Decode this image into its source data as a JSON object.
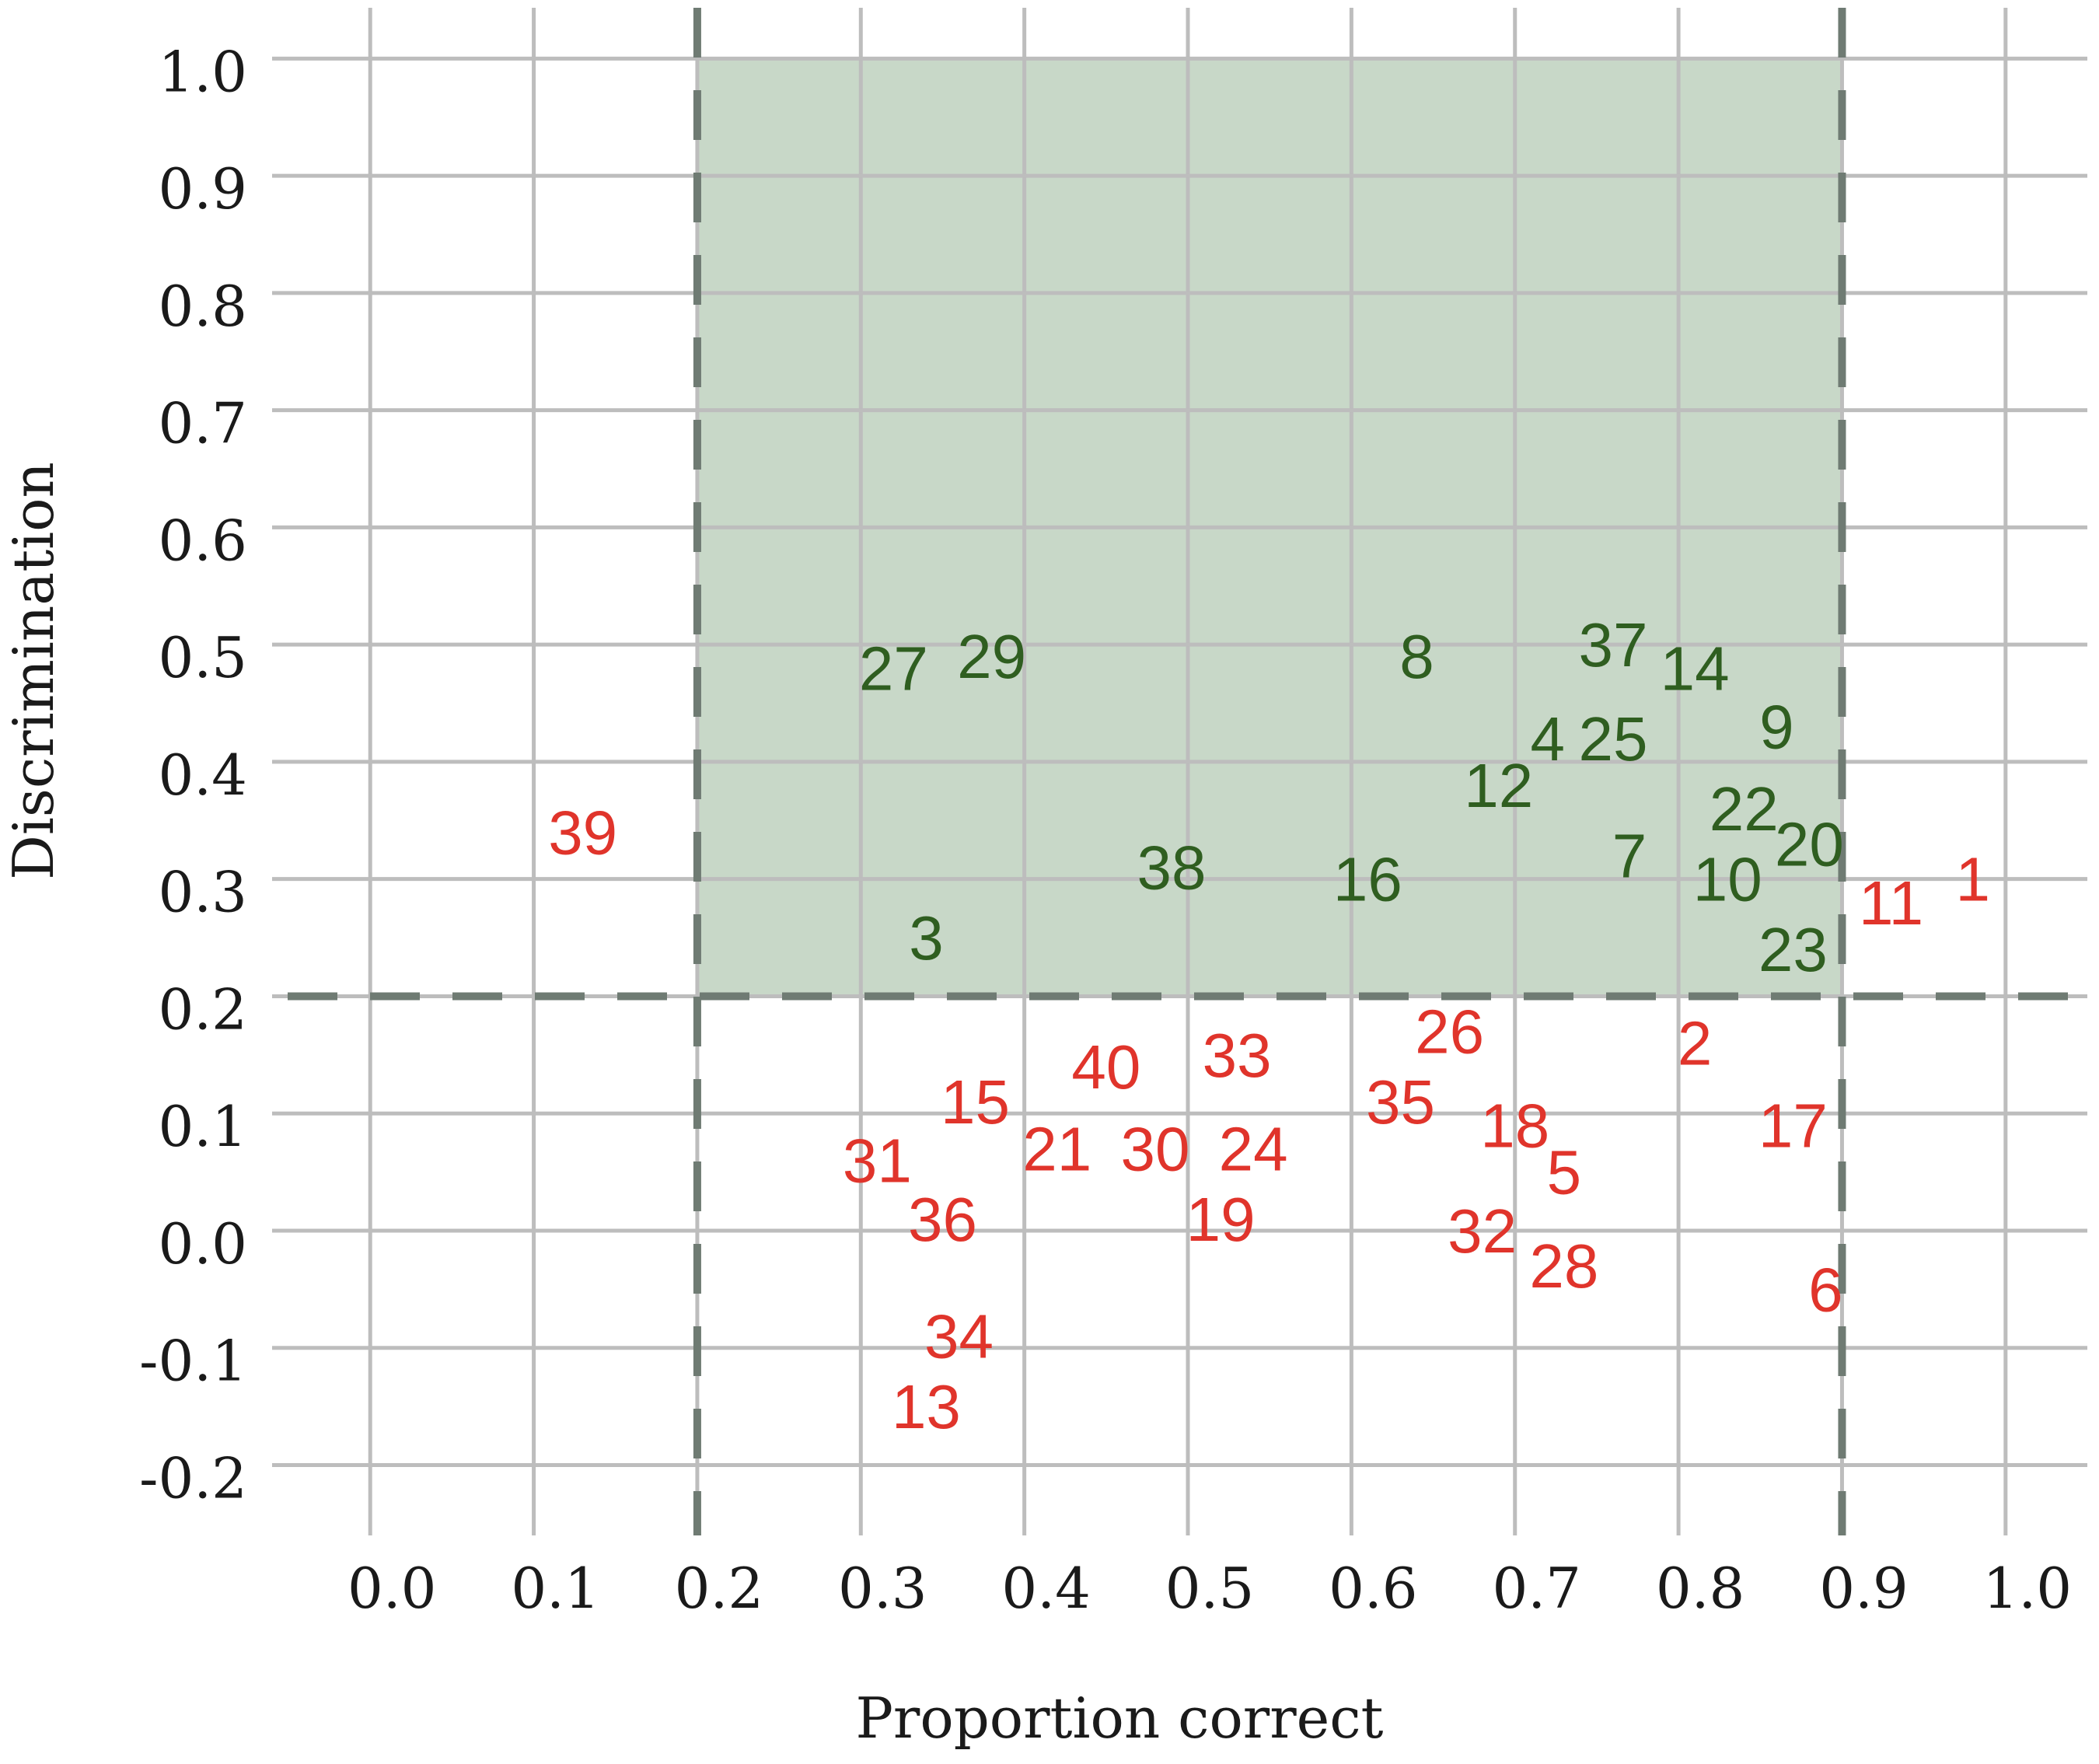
{
  "chart_data": {
    "type": "scatter",
    "xlabel": "Proportion correct",
    "ylabel": "Discrimination",
    "xlim": [
      -0.06,
      1.05
    ],
    "ylim": [
      -0.27,
      1.05
    ],
    "x_ticks": [
      "0.0",
      "0.1",
      "0.2",
      "0.3",
      "0.4",
      "0.5",
      "0.6",
      "0.7",
      "0.8",
      "0.9",
      "1.0"
    ],
    "y_ticks": [
      "1.0",
      "0.9",
      "0.8",
      "0.7",
      "0.6",
      "0.5",
      "0.4",
      "0.3",
      "0.2",
      "0.1",
      "0.0",
      "-0.1",
      "-0.2"
    ],
    "grid": true,
    "acceptable_region": {
      "x_min": 0.2,
      "x_max": 0.9,
      "y_min": 0.2,
      "y_max": 1.0
    },
    "thresholds": {
      "x": [
        0.2,
        0.9
      ],
      "y": [
        0.2
      ]
    },
    "colors": {
      "acceptable": "#2f5e20",
      "unacceptable": "#e0342b",
      "region_fill": "#c8d8c8",
      "threshold_line": "#6f7b73",
      "grid": "#bdbdbd"
    },
    "points": [
      {
        "label": "1",
        "x": 0.98,
        "y": 0.3,
        "group": "unacceptable"
      },
      {
        "label": "2",
        "x": 0.81,
        "y": 0.16,
        "group": "unacceptable"
      },
      {
        "label": "3",
        "x": 0.34,
        "y": 0.25,
        "group": "acceptable"
      },
      {
        "label": "4",
        "x": 0.72,
        "y": 0.42,
        "group": "acceptable"
      },
      {
        "label": "5",
        "x": 0.73,
        "y": 0.05,
        "group": "unacceptable"
      },
      {
        "label": "6",
        "x": 0.89,
        "y": -0.05,
        "group": "unacceptable"
      },
      {
        "label": "7",
        "x": 0.77,
        "y": 0.32,
        "group": "acceptable"
      },
      {
        "label": "8",
        "x": 0.64,
        "y": 0.49,
        "group": "acceptable"
      },
      {
        "label": "9",
        "x": 0.86,
        "y": 0.43,
        "group": "acceptable"
      },
      {
        "label": "10",
        "x": 0.83,
        "y": 0.3,
        "group": "acceptable"
      },
      {
        "label": "11",
        "x": 0.93,
        "y": 0.28,
        "group": "unacceptable"
      },
      {
        "label": "12",
        "x": 0.69,
        "y": 0.38,
        "group": "acceptable"
      },
      {
        "label": "13",
        "x": 0.34,
        "y": -0.15,
        "group": "unacceptable"
      },
      {
        "label": "14",
        "x": 0.81,
        "y": 0.48,
        "group": "acceptable"
      },
      {
        "label": "15",
        "x": 0.37,
        "y": 0.11,
        "group": "unacceptable"
      },
      {
        "label": "16",
        "x": 0.61,
        "y": 0.3,
        "group": "acceptable"
      },
      {
        "label": "17",
        "x": 0.87,
        "y": 0.09,
        "group": "unacceptable"
      },
      {
        "label": "18",
        "x": 0.7,
        "y": 0.09,
        "group": "unacceptable"
      },
      {
        "label": "19",
        "x": 0.52,
        "y": 0.01,
        "group": "unacceptable"
      },
      {
        "label": "20",
        "x": 0.88,
        "y": 0.33,
        "group": "acceptable"
      },
      {
        "label": "21",
        "x": 0.42,
        "y": 0.07,
        "group": "unacceptable"
      },
      {
        "label": "22",
        "x": 0.84,
        "y": 0.36,
        "group": "acceptable"
      },
      {
        "label": "23",
        "x": 0.87,
        "y": 0.24,
        "group": "acceptable"
      },
      {
        "label": "24",
        "x": 0.54,
        "y": 0.07,
        "group": "unacceptable"
      },
      {
        "label": "25",
        "x": 0.76,
        "y": 0.42,
        "group": "acceptable"
      },
      {
        "label": "26",
        "x": 0.66,
        "y": 0.17,
        "group": "unacceptable"
      },
      {
        "label": "27",
        "x": 0.32,
        "y": 0.48,
        "group": "acceptable"
      },
      {
        "label": "28",
        "x": 0.73,
        "y": -0.03,
        "group": "unacceptable"
      },
      {
        "label": "29",
        "x": 0.38,
        "y": 0.49,
        "group": "acceptable"
      },
      {
        "label": "30",
        "x": 0.48,
        "y": 0.07,
        "group": "unacceptable"
      },
      {
        "label": "31",
        "x": 0.31,
        "y": 0.06,
        "group": "unacceptable"
      },
      {
        "label": "32",
        "x": 0.68,
        "y": 0.0,
        "group": "unacceptable"
      },
      {
        "label": "33",
        "x": 0.53,
        "y": 0.15,
        "group": "unacceptable"
      },
      {
        "label": "34",
        "x": 0.36,
        "y": -0.09,
        "group": "unacceptable"
      },
      {
        "label": "35",
        "x": 0.63,
        "y": 0.11,
        "group": "unacceptable"
      },
      {
        "label": "36",
        "x": 0.35,
        "y": 0.01,
        "group": "unacceptable"
      },
      {
        "label": "37",
        "x": 0.76,
        "y": 0.5,
        "group": "acceptable"
      },
      {
        "label": "38",
        "x": 0.49,
        "y": 0.31,
        "group": "acceptable"
      },
      {
        "label": "39",
        "x": 0.13,
        "y": 0.34,
        "group": "unacceptable"
      },
      {
        "label": "40",
        "x": 0.45,
        "y": 0.14,
        "group": "unacceptable"
      }
    ]
  }
}
